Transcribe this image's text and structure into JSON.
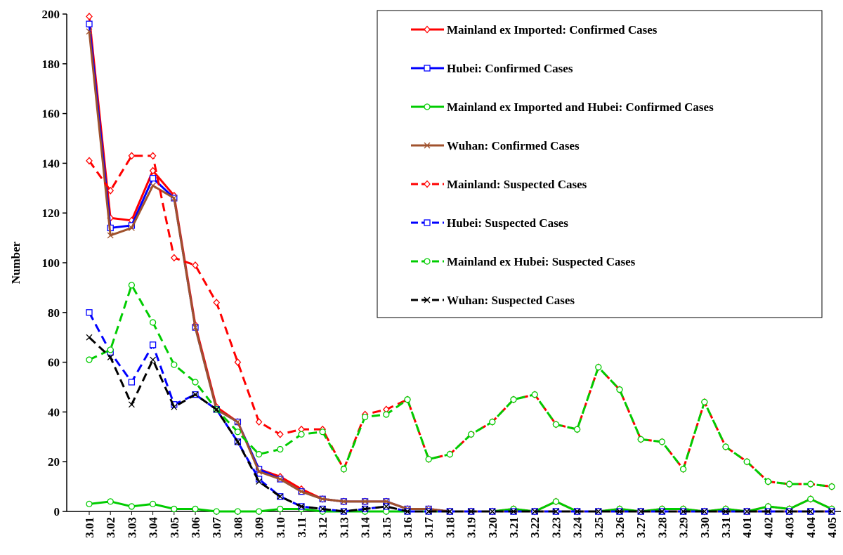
{
  "chart_data": {
    "type": "line",
    "y_label": "Number",
    "categories": [
      "3.01",
      "3.02",
      "3.03",
      "3.04",
      "3.05",
      "3.06",
      "3.07",
      "3.08",
      "3.09",
      "3.10",
      "3.11",
      "3.12",
      "3.13",
      "3.14",
      "3.15",
      "3.16",
      "3.17",
      "3.18",
      "3.19",
      "3.20",
      "3.21",
      "3.22",
      "3.23",
      "3.24",
      "3.25",
      "3.26",
      "3.27",
      "3.28",
      "3.29",
      "3.30",
      "3.31",
      "4.01",
      "4.02",
      "4.03",
      "4.04",
      "4.05"
    ],
    "ylim": [
      0,
      200
    ],
    "yticks": [
      0,
      20,
      40,
      60,
      80,
      100,
      120,
      140,
      160,
      180,
      200
    ],
    "legend": "upper right",
    "series": [
      {
        "name": "Mainland ex Imported: Confirmed Cases",
        "color": "#ff0000",
        "marker": "diamond",
        "dashed": false,
        "values": [
          199,
          118,
          117,
          137,
          127,
          75,
          42,
          36,
          17,
          14,
          9,
          5,
          4,
          4,
          4,
          1,
          1,
          0,
          0,
          0,
          1,
          0,
          4,
          0,
          0,
          1,
          0,
          1,
          1,
          0,
          1,
          0,
          2,
          1,
          5,
          1
        ]
      },
      {
        "name": "Hubei: Confirmed Cases",
        "color": "#0000ff",
        "marker": "square",
        "dashed": false,
        "values": [
          196,
          114,
          115,
          134,
          126,
          74,
          41,
          36,
          17,
          13,
          8,
          5,
          4,
          4,
          4,
          1,
          1,
          0,
          0,
          0,
          0,
          0,
          0,
          0,
          0,
          0,
          0,
          0,
          0,
          0,
          0,
          0,
          0,
          0,
          0,
          0
        ]
      },
      {
        "name": "Mainland ex Imported and Hubei: Confirmed Cases",
        "color": "#00cc00",
        "marker": "circle",
        "dashed": false,
        "values": [
          3,
          4,
          2,
          3,
          1,
          1,
          0,
          0,
          0,
          1,
          1,
          0,
          0,
          0,
          0,
          0,
          0,
          0,
          0,
          0,
          1,
          0,
          4,
          0,
          0,
          1,
          0,
          1,
          1,
          0,
          1,
          0,
          2,
          1,
          5,
          1
        ]
      },
      {
        "name": "Wuhan: Confirmed Cases",
        "color": "#a0522d",
        "marker": "x",
        "dashed": false,
        "values": [
          193,
          111,
          114,
          131,
          126,
          74,
          41,
          36,
          16,
          13,
          8,
          5,
          4,
          4,
          4,
          1,
          1,
          0,
          0,
          0,
          0,
          0,
          0,
          0,
          0,
          0,
          0,
          0,
          0,
          0,
          0,
          0,
          0,
          0,
          0,
          0
        ]
      },
      {
        "name": "Mainland: Suspected Cases",
        "color": "#ff0000",
        "marker": "diamond",
        "dashed": true,
        "values": [
          141,
          129,
          143,
          143,
          102,
          99,
          84,
          60,
          36,
          31,
          33,
          33,
          17,
          39,
          41,
          45,
          21,
          23,
          31,
          36,
          45,
          47,
          35,
          33,
          58,
          49,
          29,
          28,
          17,
          44,
          26,
          20,
          12,
          11,
          11,
          10
        ]
      },
      {
        "name": "Hubei: Suspected Cases",
        "color": "#0000ff",
        "marker": "square",
        "dashed": true,
        "values": [
          80,
          64,
          52,
          67,
          43,
          47,
          41,
          28,
          13,
          6,
          2,
          1,
          0,
          1,
          2,
          0,
          0,
          0,
          0,
          0,
          0,
          0,
          0,
          0,
          0,
          0,
          0,
          0,
          0,
          0,
          0,
          0,
          0,
          0,
          0,
          0
        ]
      },
      {
        "name": "Mainland ex Hubei: Suspected Cases",
        "color": "#00cc00",
        "marker": "circle",
        "dashed": true,
        "values": [
          61,
          65,
          91,
          76,
          59,
          52,
          41,
          32,
          23,
          25,
          31,
          32,
          17,
          38,
          39,
          45,
          21,
          23,
          31,
          36,
          45,
          47,
          35,
          33,
          58,
          49,
          29,
          28,
          17,
          44,
          26,
          20,
          12,
          11,
          11,
          10
        ]
      },
      {
        "name": "Wuhan: Suspected Cases",
        "color": "#000000",
        "marker": "x",
        "dashed": true,
        "values": [
          70,
          62,
          43,
          61,
          42,
          47,
          41,
          28,
          12,
          6,
          2,
          1,
          0,
          1,
          2,
          0,
          0,
          0,
          0,
          0,
          0,
          0,
          0,
          0,
          0,
          0,
          0,
          0,
          0,
          0,
          0,
          0,
          0,
          0,
          0,
          0
        ]
      }
    ]
  }
}
